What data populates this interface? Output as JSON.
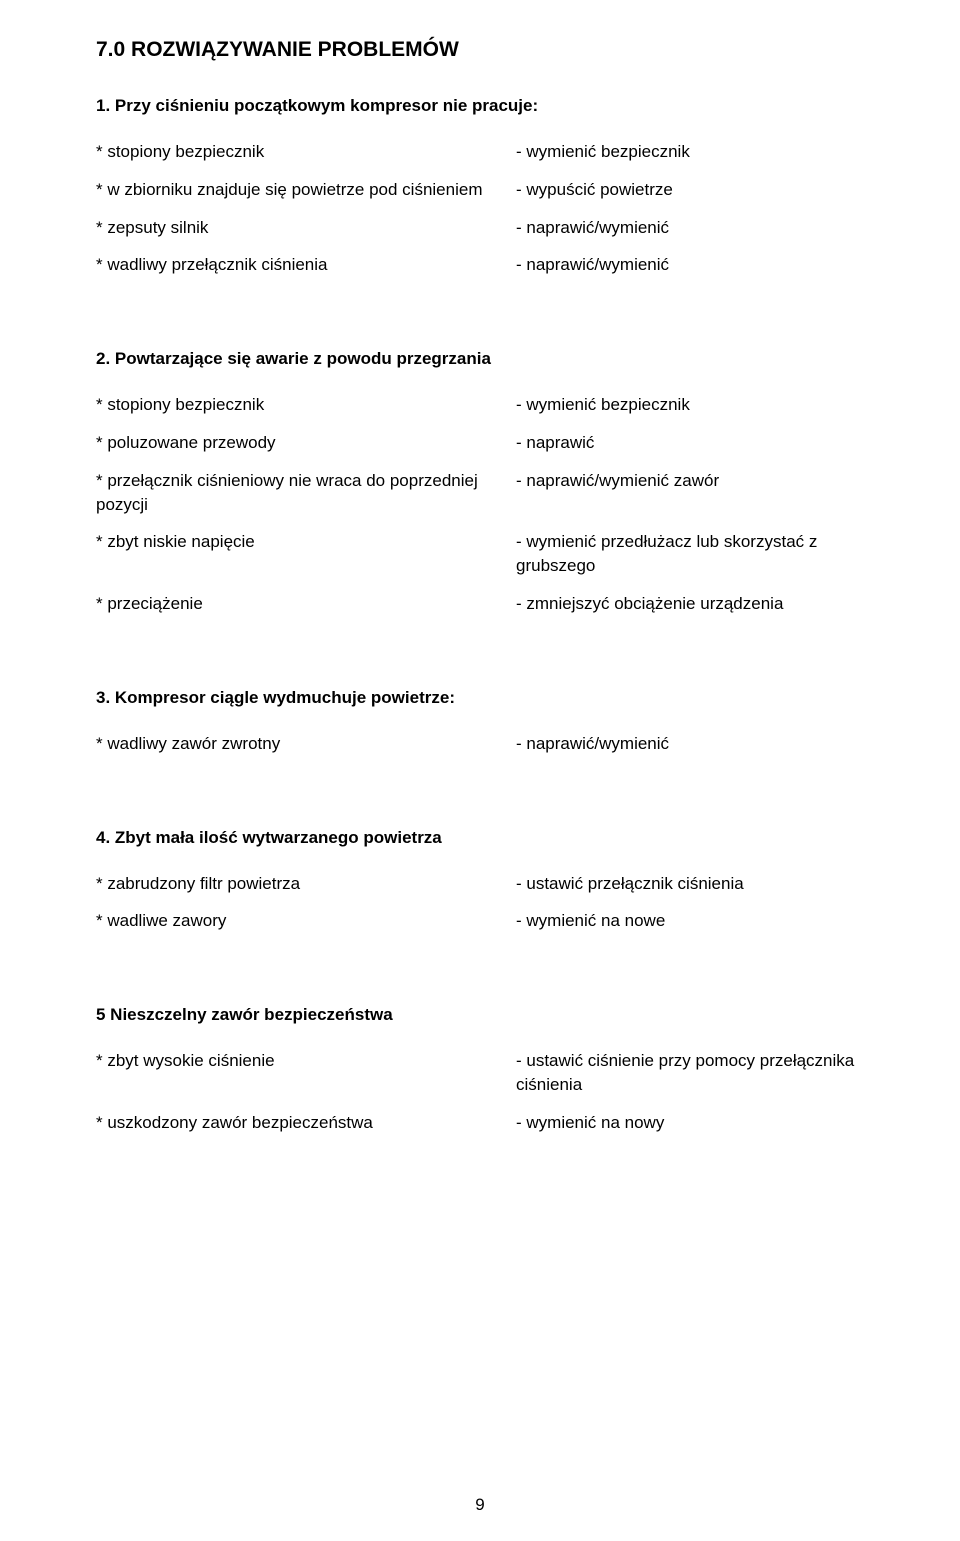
{
  "page": {
    "number": "9"
  },
  "title": "7.0 ROZWIĄZYWANIE PROBLEMÓW",
  "sections": [
    {
      "heading": "1. Przy ciśnieniu początkowym kompresor nie pracuje:",
      "rows": [
        {
          "cause": "* stopiony bezpiecznik",
          "fix": "- wymienić bezpiecznik"
        },
        {
          "cause": "* w zbiorniku znajduje się powietrze pod ciśnieniem",
          "fix": "- wypuścić powietrze"
        },
        {
          "cause": "* zepsuty silnik",
          "fix": "- naprawić/wymienić"
        },
        {
          "cause": "* wadliwy przełącznik ciśnienia",
          "fix": "- naprawić/wymienić"
        }
      ]
    },
    {
      "heading": "2. Powtarzające się awarie z powodu przegrzania",
      "rows": [
        {
          "cause": "* stopiony bezpiecznik",
          "fix": "- wymienić bezpiecznik"
        },
        {
          "cause": "* poluzowane przewody",
          "fix": "- naprawić"
        },
        {
          "cause": "* przełącznik ciśnieniowy nie wraca do poprzedniej pozycji",
          "fix": "- naprawić/wymienić zawór"
        },
        {
          "cause": "* zbyt niskie napięcie",
          "fix": "- wymienić przedłużacz lub skorzystać z grubszego"
        },
        {
          "cause": "* przeciążenie",
          "fix": "- zmniejszyć obciążenie urządzenia"
        }
      ]
    },
    {
      "heading": "3. Kompresor ciągle wydmuchuje powietrze:",
      "rows": [
        {
          "cause": "* wadliwy zawór zwrotny",
          "fix": "- naprawić/wymienić"
        }
      ]
    },
    {
      "heading": "4. Zbyt mała ilość wytwarzanego powietrza",
      "rows": [
        {
          "cause": "* zabrudzony filtr powietrza",
          "fix": "- ustawić przełącznik ciśnienia"
        },
        {
          "cause": "* wadliwe zawory",
          "fix": "- wymienić na nowe"
        }
      ]
    },
    {
      "heading": "5  Nieszczelny zawór bezpieczeństwa",
      "rows": [
        {
          "cause": "* zbyt wysokie ciśnienie",
          "fix": "- ustawić ciśnienie przy pomocy przełącznika ciśnienia"
        },
        {
          "cause": "* uszkodzony zawór bezpieczeństwa",
          "fix": "- wymienić na nowy"
        }
      ]
    }
  ]
}
